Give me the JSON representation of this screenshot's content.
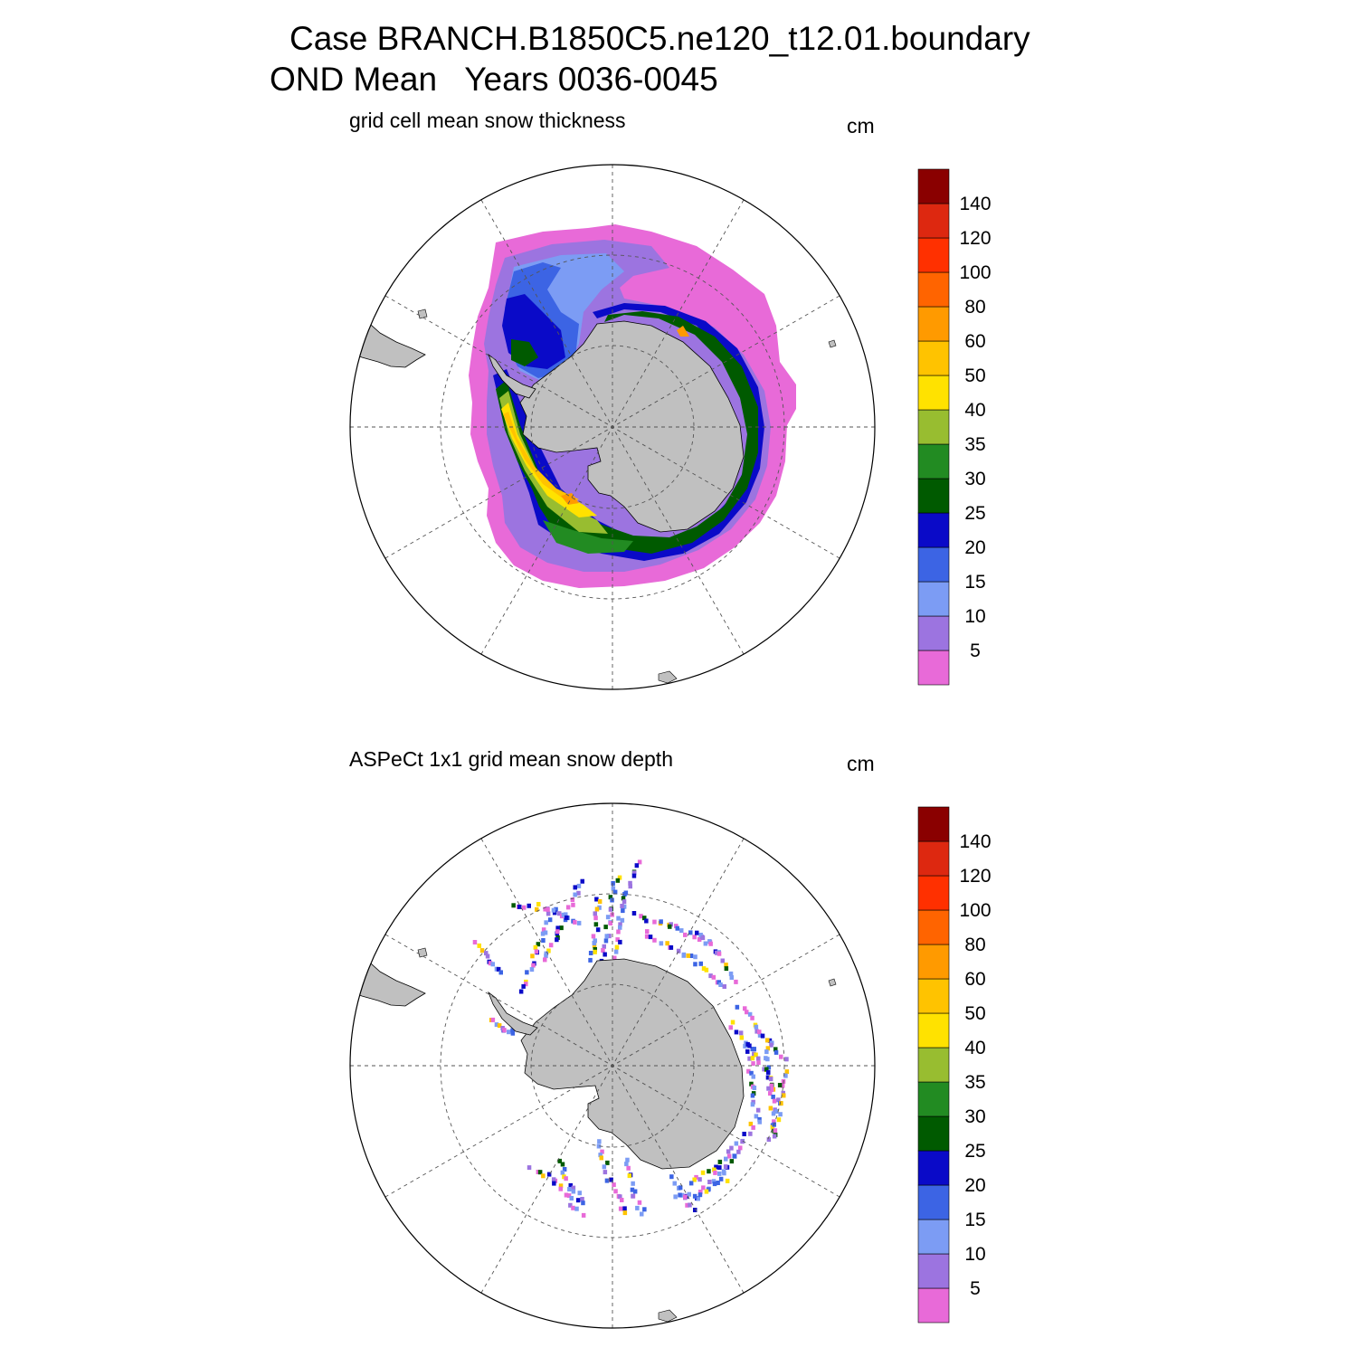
{
  "header": {
    "title_line1": "Case BRANCH.B1850C5.ne120_t12.01.boundary",
    "title_line2": "OND Mean   Years 0036-0045"
  },
  "colors": [
    "#e86ad8",
    "#9c74e0",
    "#7c9cf4",
    "#3c64e4",
    "#0a0ac8",
    "#005a00",
    "#228b22",
    "#98bd30",
    "#ffe200",
    "#ffc300",
    "#ff9a00",
    "#ff6400",
    "#ff3000",
    "#dd2810",
    "#8a0000"
  ],
  "colorbar_levels": [
    "5",
    "10",
    "15",
    "20",
    "25",
    "30",
    "35",
    "40",
    "50",
    "60",
    "80",
    "100",
    "120",
    "140"
  ],
  "panels": [
    {
      "title": "grid cell mean snow thickness",
      "units": "cm"
    },
    {
      "title": "ASPeCt 1x1 grid mean snow depth",
      "units": "cm"
    }
  ]
}
